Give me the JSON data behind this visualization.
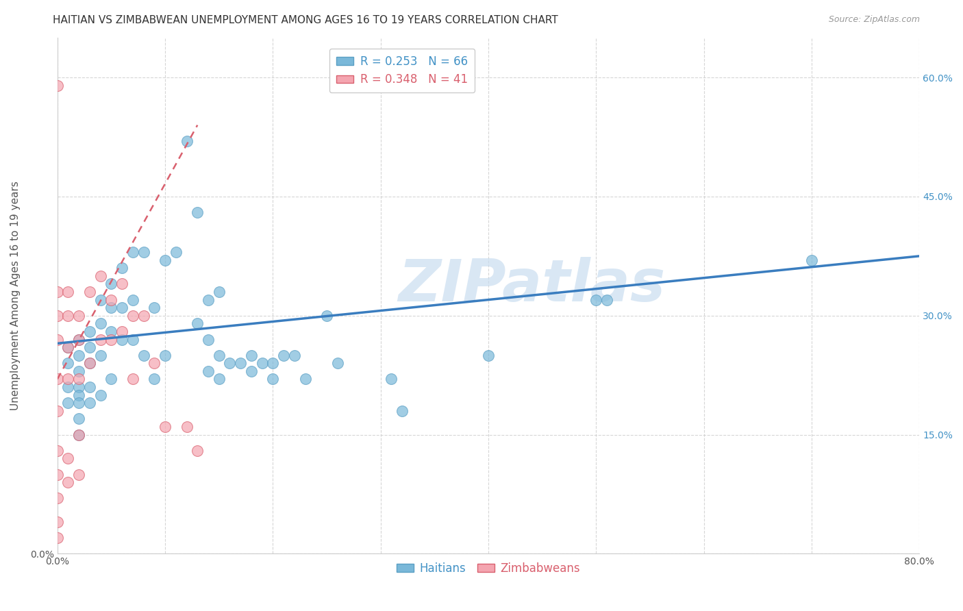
{
  "title": "HAITIAN VS ZIMBABWEAN UNEMPLOYMENT AMONG AGES 16 TO 19 YEARS CORRELATION CHART",
  "source": "Source: ZipAtlas.com",
  "ylabel": "Unemployment Among Ages 16 to 19 years",
  "xlim": [
    0.0,
    0.8
  ],
  "ylim": [
    0.0,
    0.65
  ],
  "x_ticks": [
    0.0,
    0.1,
    0.2,
    0.3,
    0.4,
    0.5,
    0.6,
    0.7,
    0.8
  ],
  "x_tick_labels": [
    "0.0%",
    "",
    "",
    "",
    "",
    "",
    "",
    "",
    "80.0%"
  ],
  "y_ticks": [
    0.0,
    0.15,
    0.3,
    0.45,
    0.6
  ],
  "y_tick_labels_left": [
    "0.0%",
    "",
    "",
    "",
    ""
  ],
  "y_ticks_right": [
    0.6,
    0.45,
    0.3,
    0.15
  ],
  "y_tick_labels_right": [
    "60.0%",
    "45.0%",
    "30.0%",
    "15.0%"
  ],
  "haitian_color": "#7ab8d9",
  "haitian_edge": "#5b9fc4",
  "zimbabwean_color": "#f4a5b0",
  "zimbabwean_edge": "#d9606e",
  "haitian_line_color": "#3a7dbf",
  "zimbabwean_line_color": "#d9606e",
  "watermark": "ZIPatlas",
  "watermark_color": "#c6dbef",
  "legend_haitian_r": "R = 0.253",
  "legend_haitian_n": "N = 66",
  "legend_zimbabwean_r": "R = 0.348",
  "legend_zimbabwean_n": "N = 41",
  "haitian_scatter_x": [
    0.01,
    0.01,
    0.01,
    0.01,
    0.02,
    0.02,
    0.02,
    0.02,
    0.02,
    0.02,
    0.02,
    0.02,
    0.03,
    0.03,
    0.03,
    0.03,
    0.03,
    0.04,
    0.04,
    0.04,
    0.04,
    0.05,
    0.05,
    0.05,
    0.05,
    0.06,
    0.06,
    0.06,
    0.07,
    0.07,
    0.07,
    0.08,
    0.08,
    0.09,
    0.09,
    0.1,
    0.1,
    0.11,
    0.12,
    0.13,
    0.13,
    0.14,
    0.14,
    0.14,
    0.15,
    0.15,
    0.15,
    0.16,
    0.17,
    0.18,
    0.18,
    0.19,
    0.2,
    0.2,
    0.21,
    0.22,
    0.23,
    0.25,
    0.26,
    0.31,
    0.32,
    0.4,
    0.5,
    0.51,
    0.7
  ],
  "haitian_scatter_y": [
    0.26,
    0.24,
    0.21,
    0.19,
    0.27,
    0.25,
    0.23,
    0.21,
    0.2,
    0.19,
    0.17,
    0.15,
    0.28,
    0.26,
    0.24,
    0.21,
    0.19,
    0.32,
    0.29,
    0.25,
    0.2,
    0.34,
    0.31,
    0.28,
    0.22,
    0.36,
    0.31,
    0.27,
    0.38,
    0.32,
    0.27,
    0.38,
    0.25,
    0.31,
    0.22,
    0.37,
    0.25,
    0.38,
    0.52,
    0.43,
    0.29,
    0.32,
    0.27,
    0.23,
    0.33,
    0.25,
    0.22,
    0.24,
    0.24,
    0.25,
    0.23,
    0.24,
    0.24,
    0.22,
    0.25,
    0.25,
    0.22,
    0.3,
    0.24,
    0.22,
    0.18,
    0.25,
    0.32,
    0.32,
    0.37
  ],
  "zimbabwean_scatter_x": [
    0.0,
    0.0,
    0.0,
    0.0,
    0.0,
    0.0,
    0.0,
    0.0,
    0.0,
    0.0,
    0.0,
    0.01,
    0.01,
    0.01,
    0.01,
    0.01,
    0.01,
    0.02,
    0.02,
    0.02,
    0.02,
    0.02,
    0.03,
    0.03,
    0.04,
    0.04,
    0.05,
    0.05,
    0.06,
    0.06,
    0.07,
    0.07,
    0.08,
    0.09,
    0.1,
    0.12,
    0.13
  ],
  "zimbabwean_scatter_y": [
    0.59,
    0.33,
    0.3,
    0.27,
    0.22,
    0.18,
    0.13,
    0.1,
    0.07,
    0.04,
    0.02,
    0.33,
    0.3,
    0.26,
    0.22,
    0.12,
    0.09,
    0.3,
    0.27,
    0.22,
    0.15,
    0.1,
    0.33,
    0.24,
    0.35,
    0.27,
    0.32,
    0.27,
    0.34,
    0.28,
    0.3,
    0.22,
    0.3,
    0.24,
    0.16,
    0.16,
    0.13
  ],
  "haitian_trend_x": [
    0.0,
    0.8
  ],
  "haitian_trend_y": [
    0.265,
    0.375
  ],
  "zimbabwean_trend_x": [
    0.0,
    0.13
  ],
  "zimbabwean_trend_y": [
    0.22,
    0.54
  ],
  "title_fontsize": 11,
  "tick_fontsize": 10,
  "label_fontsize": 11,
  "legend_fontsize": 12,
  "background_color": "#ffffff",
  "grid_color": "#cccccc",
  "right_tick_color": "#4292c6"
}
